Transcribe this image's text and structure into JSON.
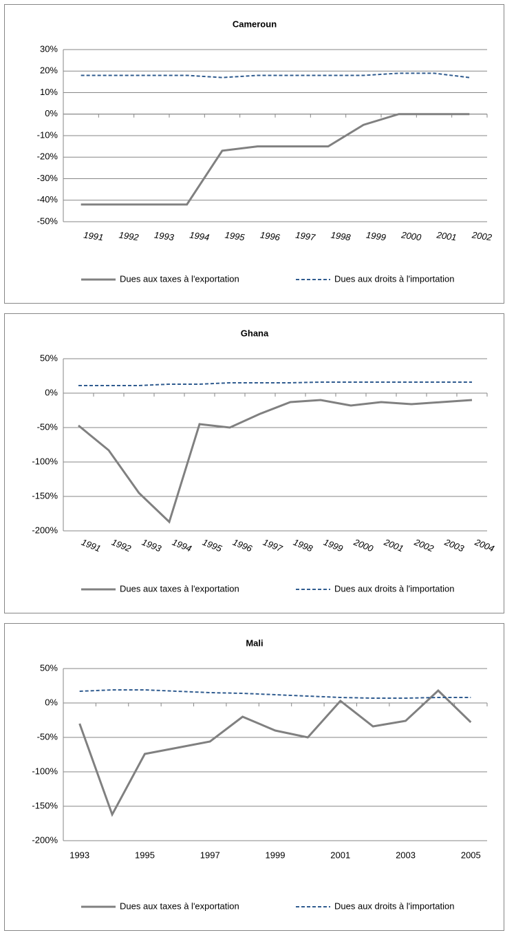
{
  "chart_data": [
    {
      "type": "line",
      "title": "Cameroun",
      "categories": [
        "1991",
        "1992",
        "1993",
        "1994",
        "1995",
        "1996",
        "1997",
        "1998",
        "1999",
        "2000",
        "2001",
        "2002"
      ],
      "series": [
        {
          "name": "Dues aux taxes à l'exportation",
          "color": "#808080",
          "values": [
            -42,
            -42,
            -42,
            -42,
            -17,
            -15,
            -15,
            -15,
            -5,
            0,
            0,
            0
          ]
        },
        {
          "name": "Dues aux droits à l'importation",
          "color": "#2f5b8f",
          "dashed": true,
          "values": [
            18,
            18,
            18,
            18,
            17,
            18,
            18,
            18,
            18,
            19,
            19,
            17
          ]
        }
      ],
      "ylim": [
        -50,
        30
      ],
      "yticks": [
        {
          "value": 30,
          "label": "30%"
        },
        {
          "value": 20,
          "label": "20%"
        },
        {
          "value": 10,
          "label": "10%"
        },
        {
          "value": 0,
          "label": "0%"
        },
        {
          "value": -10,
          "label": "-10%"
        },
        {
          "value": -20,
          "label": "-20%"
        },
        {
          "value": -30,
          "label": "-30%"
        },
        {
          "value": -40,
          "label": "-40%"
        },
        {
          "value": -50,
          "label": "-50%"
        }
      ],
      "grid": true,
      "legend": "bottom"
    },
    {
      "type": "line",
      "title": "Ghana",
      "categories": [
        "1991",
        "1992",
        "1993",
        "1994",
        "1995",
        "1996",
        "1997",
        "1998",
        "1999",
        "2000",
        "2001",
        "2002",
        "2003",
        "2004"
      ],
      "series": [
        {
          "name": "Dues aux taxes à l'exportation",
          "color": "#808080",
          "values": [
            -47,
            -83,
            -145,
            -187,
            -45,
            -50,
            -30,
            -13,
            -10,
            -18,
            -13,
            -16,
            -13,
            -10
          ]
        },
        {
          "name": "Dues aux droits à l'importation",
          "color": "#2f5b8f",
          "dashed": true,
          "values": [
            11,
            11,
            11,
            13,
            13,
            15,
            15,
            15,
            16,
            16,
            16,
            16,
            16,
            16
          ]
        }
      ],
      "ylim": [
        -200,
        50
      ],
      "yticks": [
        {
          "value": 50,
          "label": "50%"
        },
        {
          "value": 0,
          "label": "0%"
        },
        {
          "value": -50,
          "label": "-50%"
        },
        {
          "value": -100,
          "label": "-100%"
        },
        {
          "value": -150,
          "label": "-150%"
        },
        {
          "value": -200,
          "label": "-200%"
        }
      ],
      "grid": true,
      "legend": "bottom"
    },
    {
      "type": "line",
      "title": "Mali",
      "categories": [
        "1993",
        null,
        "1995",
        null,
        "1997",
        null,
        "1999",
        null,
        "2001",
        null,
        "2003",
        null,
        "2005"
      ],
      "series": [
        {
          "name": "Dues aux taxes à l'exportation",
          "color": "#808080",
          "values": [
            -30,
            -162,
            -74,
            -65,
            -56,
            -20,
            -40,
            -50,
            3,
            -34,
            -26,
            18,
            -28
          ]
        },
        {
          "name": "Dues aux droits à l'importation",
          "color": "#2f5b8f",
          "dashed": true,
          "values": [
            17,
            19,
            19,
            17,
            15,
            14,
            12,
            10,
            8,
            7,
            7,
            8,
            8
          ]
        }
      ],
      "ylim": [
        -200,
        50
      ],
      "yticks": [
        {
          "value": 50,
          "label": "50%"
        },
        {
          "value": 0,
          "label": "0%"
        },
        {
          "value": -50,
          "label": "-50%"
        },
        {
          "value": -100,
          "label": "-100%"
        },
        {
          "value": -150,
          "label": "-150%"
        },
        {
          "value": -200,
          "label": "-200%"
        }
      ],
      "grid": true,
      "legend": "bottom"
    }
  ]
}
